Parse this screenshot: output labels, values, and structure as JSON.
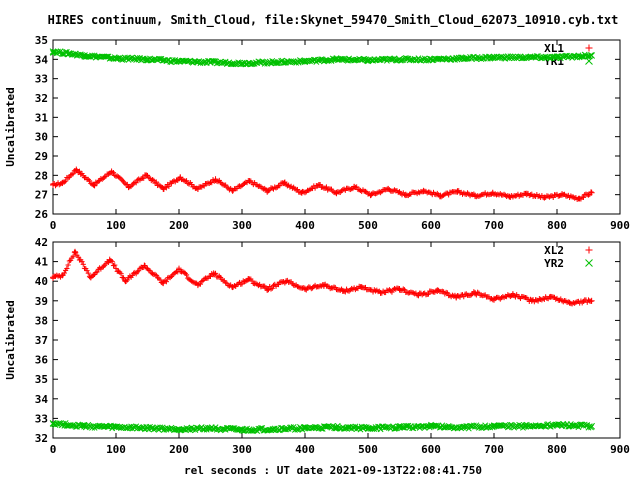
{
  "figure_title": "HIRES continuum, Smith_Cloud, file:Skynet_59470_Smith_Cloud_62073_10910.cyb.txt",
  "xlabel": "rel seconds : UT date 2021-09-13T22:08:41.750",
  "colors": {
    "red": "#ff0000",
    "green": "#00c000",
    "axis": "#000000"
  },
  "chart_data": [
    {
      "type": "scatter",
      "name": "top-panel",
      "ylabel": "Uncalibrated",
      "xlim": [
        0,
        900
      ],
      "ylim": [
        26,
        35
      ],
      "xticks": [
        0,
        100,
        200,
        300,
        400,
        500,
        600,
        700,
        800,
        900
      ],
      "yticks": [
        26,
        27,
        28,
        29,
        30,
        31,
        32,
        33,
        34,
        35
      ],
      "legend_position": "top-right",
      "series": [
        {
          "name": "XL1",
          "marker": "+",
          "color": "#ff0000",
          "x": [
            0,
            15,
            37,
            65,
            93,
            120,
            148,
            175,
            202,
            230,
            258,
            285,
            312,
            340,
            367,
            395,
            422,
            450,
            478,
            505,
            532,
            560,
            588,
            615,
            642,
            670,
            698,
            725,
            752,
            780,
            808,
            835,
            855
          ],
          "y": [
            27.5,
            27.6,
            28.3,
            27.5,
            28.2,
            27.4,
            28.0,
            27.3,
            27.9,
            27.3,
            27.8,
            27.2,
            27.7,
            27.2,
            27.6,
            27.1,
            27.5,
            27.1,
            27.4,
            27.0,
            27.3,
            27.0,
            27.2,
            26.95,
            27.15,
            26.95,
            27.1,
            26.9,
            27.05,
            26.85,
            27.0,
            26.8,
            27.1
          ]
        },
        {
          "name": "YR1",
          "marker": "x",
          "color": "#00c000",
          "x": [
            0,
            25,
            50,
            100,
            150,
            200,
            250,
            300,
            350,
            400,
            450,
            500,
            550,
            600,
            650,
            700,
            750,
            800,
            855
          ],
          "y": [
            34.4,
            34.3,
            34.2,
            34.05,
            34.0,
            33.9,
            33.85,
            33.8,
            33.85,
            33.9,
            34.0,
            33.95,
            34.0,
            34.0,
            34.05,
            34.1,
            34.1,
            34.1,
            34.2
          ]
        }
      ]
    },
    {
      "type": "scatter",
      "name": "bottom-panel",
      "ylabel": "Uncalibrated",
      "xlim": [
        0,
        900
      ],
      "ylim": [
        32,
        42
      ],
      "xticks": [
        0,
        100,
        200,
        300,
        400,
        500,
        600,
        700,
        800,
        900
      ],
      "yticks": [
        32,
        33,
        34,
        35,
        36,
        37,
        38,
        39,
        40,
        41,
        42
      ],
      "legend_position": "top-right",
      "series": [
        {
          "name": "XL2",
          "marker": "+",
          "color": "#ff0000",
          "x": [
            0,
            15,
            35,
            60,
            90,
            115,
            145,
            175,
            200,
            230,
            255,
            285,
            310,
            340,
            370,
            400,
            430,
            460,
            490,
            520,
            550,
            580,
            610,
            640,
            670,
            700,
            730,
            760,
            790,
            820,
            855
          ],
          "y": [
            40.2,
            40.3,
            41.5,
            40.2,
            41.1,
            40.0,
            40.8,
            39.9,
            40.6,
            39.8,
            40.4,
            39.7,
            40.1,
            39.6,
            40.0,
            39.6,
            39.8,
            39.5,
            39.7,
            39.4,
            39.6,
            39.3,
            39.5,
            39.2,
            39.4,
            39.1,
            39.3,
            39.0,
            39.2,
            38.9,
            39.0
          ]
        },
        {
          "name": "YR2",
          "marker": "x",
          "color": "#00c000",
          "x": [
            0,
            50,
            100,
            150,
            200,
            250,
            300,
            350,
            400,
            450,
            500,
            550,
            600,
            650,
            700,
            750,
            800,
            855
          ],
          "y": [
            32.75,
            32.6,
            32.55,
            32.5,
            32.45,
            32.5,
            32.4,
            32.45,
            32.5,
            32.55,
            32.5,
            32.55,
            32.6,
            32.55,
            32.6,
            32.6,
            32.65,
            32.6
          ]
        }
      ]
    }
  ]
}
